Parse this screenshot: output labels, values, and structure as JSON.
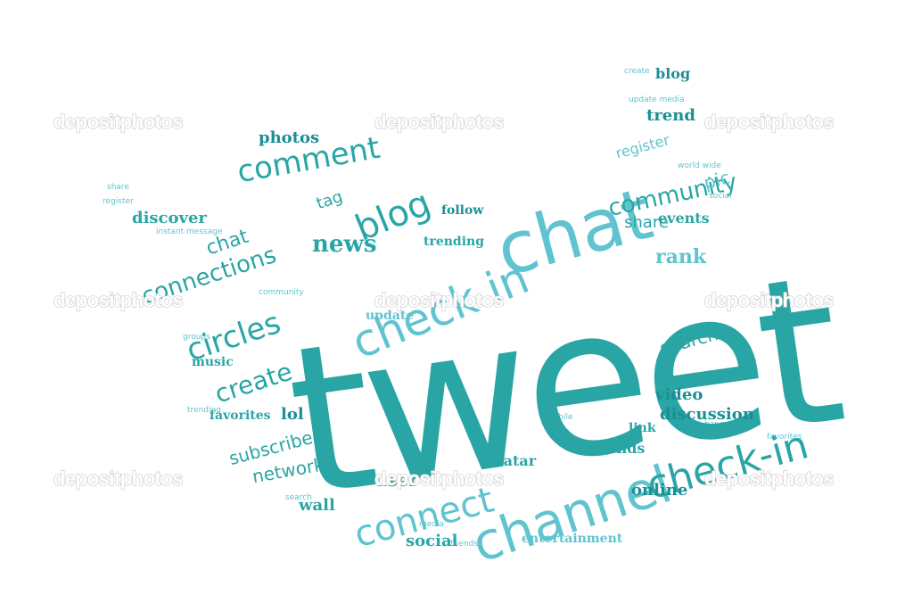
{
  "image": {
    "background": "#ffffff",
    "subject": "word cloud in the shape of a bird",
    "colors": {
      "primary": "#2aa5a5",
      "light": "#5fc4cf",
      "dark": "#1a8f95",
      "watermark_stroke": "#c9c9c9"
    }
  },
  "watermark": "depositphotos",
  "words": {
    "tweet": "tweet",
    "chat": "chat",
    "check_in": "check in",
    "channel": "channel",
    "check_in_hyphen": "check-in",
    "connect": "connect",
    "comment": "comment",
    "blog": "blog",
    "news": "news",
    "circles": "circles",
    "connections": "connections",
    "create": "create",
    "community": "community",
    "discover": "discover",
    "discussion": "discussion",
    "rank": "rank",
    "share": "share",
    "photos": "photos",
    "trend": "trend",
    "register": "register",
    "social": "social",
    "subscribe": "subscribe",
    "network": "network",
    "online": "online",
    "video": "video",
    "user": "user",
    "avatar": "avatar",
    "friends": "friends",
    "wall": "wall",
    "entertainment": "entertainment",
    "events": "events",
    "search": "search",
    "lol": "lol",
    "update": "update",
    "music": "music",
    "favorites": "favorites",
    "pic": "pic",
    "link": "link",
    "tag": "tag",
    "follow": "follow",
    "trending": "trending",
    "groups": "groups",
    "media": "media",
    "mobile": "mobile",
    "hang_out": "hang out",
    "instant_message": "instant message",
    "world_wide": "world wide",
    "create_small": "create",
    "update_media": "update media"
  }
}
